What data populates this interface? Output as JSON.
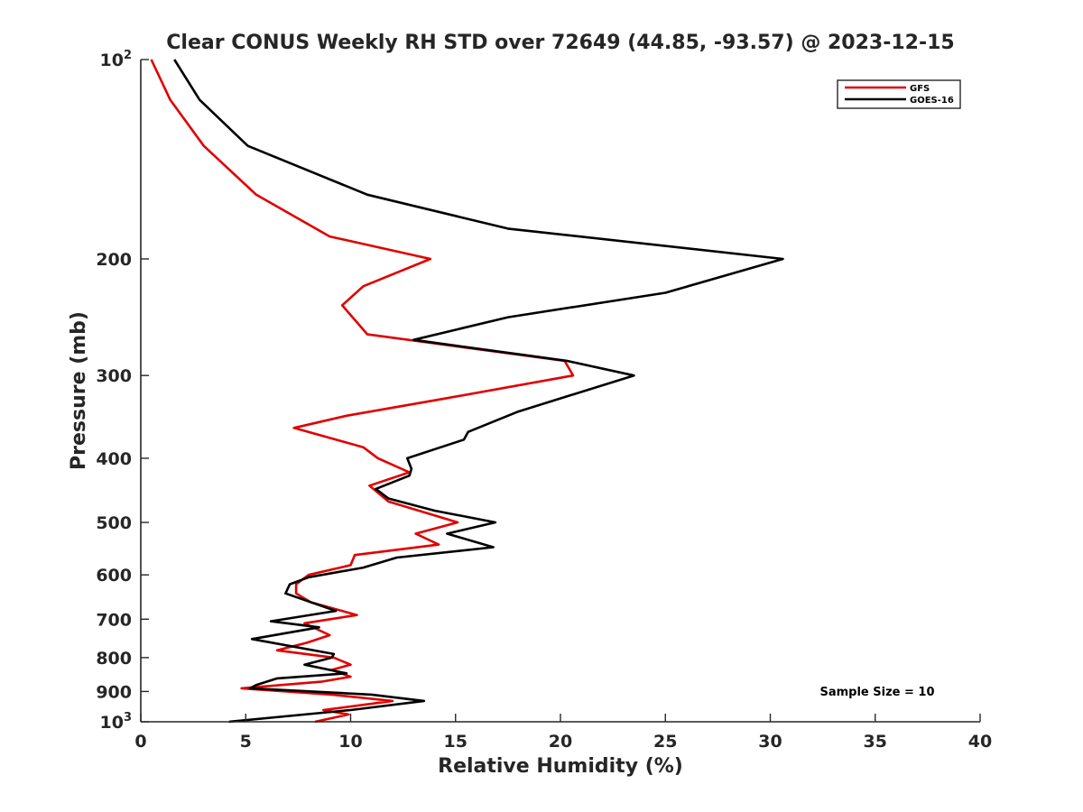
{
  "chart_data": {
    "type": "line",
    "title": "Clear CONUS Weekly RH STD over 72649 (44.85, -93.57) @ 2023-12-15",
    "xlabel": "Relative Humidity (%)",
    "ylabel": "Pressure (mb)",
    "xlim": [
      0,
      40
    ],
    "ylim": [
      1000,
      100
    ],
    "y_scale": "log",
    "y_reversed": true,
    "grid": false,
    "legend_position": "top-right",
    "x_ticks": [
      "0",
      "5",
      "10",
      "15",
      "20",
      "25",
      "30",
      "35",
      "40"
    ],
    "y_ticks": [
      {
        "value": 100,
        "base": "10",
        "exp": "2"
      },
      {
        "value": 200,
        "label": "200"
      },
      {
        "value": 300,
        "label": "300"
      },
      {
        "value": 400,
        "label": "400"
      },
      {
        "value": 500,
        "label": "500"
      },
      {
        "value": 600,
        "label": "600"
      },
      {
        "value": 700,
        "label": "700"
      },
      {
        "value": 800,
        "label": "800"
      },
      {
        "value": 900,
        "label": "900"
      },
      {
        "value": 1000,
        "base": "10",
        "exp": "3"
      }
    ],
    "annotation": "Sample Size = 10",
    "series": [
      {
        "name": "GFS",
        "color": "#e00000",
        "points": [
          [
            0.5,
            100
          ],
          [
            1.4,
            115
          ],
          [
            3.0,
            135
          ],
          [
            5.5,
            160
          ],
          [
            9.0,
            185
          ],
          [
            13.8,
            200
          ],
          [
            10.6,
            220
          ],
          [
            9.6,
            235
          ],
          [
            10.8,
            260
          ],
          [
            20.2,
            285
          ],
          [
            20.6,
            300
          ],
          [
            14.5,
            325
          ],
          [
            9.8,
            345
          ],
          [
            7.3,
            360
          ],
          [
            10.6,
            385
          ],
          [
            11.3,
            400
          ],
          [
            12.8,
            420
          ],
          [
            10.9,
            440
          ],
          [
            11.8,
            465
          ],
          [
            15.1,
            500
          ],
          [
            13.1,
            520
          ],
          [
            14.2,
            540
          ],
          [
            10.2,
            560
          ],
          [
            10.0,
            580
          ],
          [
            8.0,
            600
          ],
          [
            7.4,
            620
          ],
          [
            7.4,
            640
          ],
          [
            8.1,
            660
          ],
          [
            10.3,
            690
          ],
          [
            7.8,
            710
          ],
          [
            9.0,
            740
          ],
          [
            7.9,
            760
          ],
          [
            6.5,
            780
          ],
          [
            9.2,
            800
          ],
          [
            10.0,
            820
          ],
          [
            9.1,
            835
          ],
          [
            10.0,
            855
          ],
          [
            8.6,
            870
          ],
          [
            4.8,
            890
          ],
          [
            9.1,
            910
          ],
          [
            12.0,
            930
          ],
          [
            8.7,
            960
          ],
          [
            9.9,
            975
          ],
          [
            8.3,
            1000
          ]
        ]
      },
      {
        "name": "GOES-16",
        "color": "#000000",
        "points": [
          [
            1.6,
            100
          ],
          [
            2.8,
            115
          ],
          [
            5.1,
            135
          ],
          [
            10.8,
            160
          ],
          [
            17.5,
            180
          ],
          [
            30.6,
            200
          ],
          [
            25.0,
            225
          ],
          [
            17.5,
            245
          ],
          [
            13.0,
            265
          ],
          [
            18.5,
            280
          ],
          [
            20.3,
            285
          ],
          [
            23.5,
            300
          ],
          [
            18.0,
            340
          ],
          [
            15.6,
            365
          ],
          [
            15.4,
            375
          ],
          [
            12.7,
            400
          ],
          [
            12.9,
            415
          ],
          [
            12.8,
            425
          ],
          [
            11.2,
            445
          ],
          [
            11.8,
            460
          ],
          [
            14.0,
            480
          ],
          [
            16.9,
            500
          ],
          [
            14.6,
            520
          ],
          [
            16.8,
            545
          ],
          [
            12.2,
            565
          ],
          [
            10.6,
            585
          ],
          [
            8.0,
            605
          ],
          [
            7.1,
            620
          ],
          [
            6.9,
            640
          ],
          [
            9.3,
            680
          ],
          [
            6.2,
            705
          ],
          [
            8.5,
            720
          ],
          [
            5.3,
            750
          ],
          [
            9.2,
            790
          ],
          [
            9.1,
            800
          ],
          [
            7.8,
            820
          ],
          [
            9.8,
            845
          ],
          [
            6.5,
            860
          ],
          [
            5.5,
            880
          ],
          [
            5.2,
            890
          ],
          [
            11.0,
            910
          ],
          [
            13.5,
            930
          ],
          [
            10.0,
            960
          ],
          [
            4.2,
            1000
          ]
        ]
      }
    ]
  }
}
